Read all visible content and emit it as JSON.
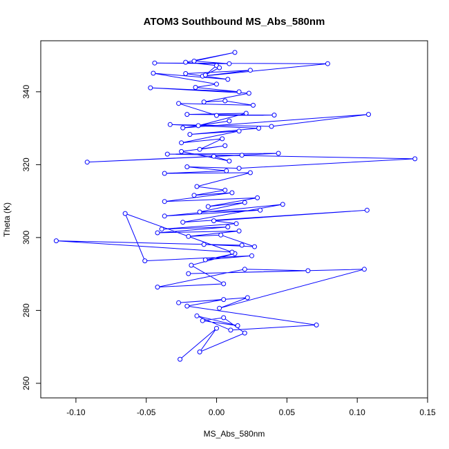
{
  "chart_data": {
    "type": "line",
    "title": "ATOM3 Southbound MS_Abs_580nm",
    "xlabel": "MS_Abs_580nm",
    "ylabel": "Theta (K)",
    "xlim": [
      -0.125,
      0.15
    ],
    "ylim": [
      256,
      354
    ],
    "x_ticks": [
      -0.1,
      -0.05,
      0.0,
      0.05,
      0.1,
      0.15
    ],
    "x_tick_labels": [
      "-0.10",
      "-0.05",
      "0.00",
      "0.05",
      "0.10",
      "0.15"
    ],
    "y_ticks": [
      260,
      280,
      300,
      320,
      340
    ],
    "y_tick_labels": [
      "260",
      "280",
      "300",
      "320",
      "340"
    ],
    "markers": "open-circle",
    "grid": false,
    "legend": "none",
    "series_color": "#0000ff",
    "series": [
      {
        "points": [
          [
            -0.026,
            266.6
          ],
          [
            0.0,
            275.1
          ],
          [
            -0.012,
            268.6
          ],
          [
            0.02,
            273.8
          ],
          [
            0.005,
            278.0
          ],
          [
            -0.01,
            277.2
          ],
          [
            0.015,
            275.8
          ],
          [
            -0.014,
            278.5
          ],
          [
            0.01,
            274.6
          ],
          [
            0.071,
            276.0
          ],
          [
            -0.021,
            281.2
          ],
          [
            0.005,
            283.0
          ],
          [
            -0.027,
            282.1
          ],
          [
            0.022,
            283.5
          ],
          [
            0.002,
            280.6
          ],
          [
            0.105,
            291.3
          ],
          [
            -0.02,
            290.1
          ],
          [
            0.065,
            290.9
          ],
          [
            0.02,
            291.3
          ],
          [
            -0.042,
            286.4
          ],
          [
            0.005,
            287.3
          ],
          [
            -0.018,
            292.4
          ],
          [
            0.013,
            295.6
          ],
          [
            -0.008,
            293.9
          ],
          [
            0.025,
            295.0
          ],
          [
            -0.051,
            293.6
          ],
          [
            -0.065,
            306.6
          ],
          [
            0.011,
            296.0
          ],
          [
            -0.114,
            299.1
          ],
          [
            0.018,
            297.9
          ],
          [
            -0.009,
            298.1
          ],
          [
            0.027,
            297.5
          ],
          [
            0.003,
            300.7
          ],
          [
            -0.02,
            300.3
          ],
          [
            0.016,
            301.8
          ],
          [
            -0.042,
            301.3
          ],
          [
            0.008,
            302.9
          ],
          [
            -0.039,
            302.3
          ],
          [
            0.014,
            303.8
          ],
          [
            -0.002,
            304.6
          ],
          [
            0.107,
            307.5
          ],
          [
            -0.024,
            304.2
          ],
          [
            0.047,
            309.1
          ],
          [
            -0.037,
            305.9
          ],
          [
            0.031,
            307.5
          ],
          [
            -0.012,
            307.0
          ],
          [
            0.02,
            309.6
          ],
          [
            -0.006,
            308.5
          ],
          [
            0.029,
            310.9
          ],
          [
            -0.037,
            309.9
          ],
          [
            0.011,
            312.3
          ],
          [
            -0.016,
            311.6
          ],
          [
            0.006,
            313.0
          ],
          [
            -0.014,
            314.0
          ],
          [
            0.024,
            317.8
          ],
          [
            -0.037,
            317.6
          ],
          [
            0.007,
            318.3
          ],
          [
            -0.021,
            319.4
          ],
          [
            0.016,
            319.0
          ],
          [
            0.141,
            321.6
          ],
          [
            -0.035,
            322.9
          ],
          [
            0.044,
            323.1
          ],
          [
            -0.092,
            320.7
          ],
          [
            0.018,
            322.6
          ],
          [
            -0.002,
            322.3
          ],
          [
            0.009,
            321.0
          ],
          [
            -0.025,
            323.6
          ],
          [
            0.006,
            325.2
          ],
          [
            -0.012,
            324.2
          ],
          [
            0.004,
            327.1
          ],
          [
            -0.025,
            326.0
          ],
          [
            0.016,
            329.2
          ],
          [
            -0.019,
            328.3
          ],
          [
            0.03,
            330.0
          ],
          [
            -0.033,
            331.0
          ],
          [
            0.039,
            330.5
          ],
          [
            0.108,
            333.8
          ],
          [
            -0.024,
            330.1
          ],
          [
            0.009,
            332.0
          ],
          [
            -0.013,
            330.7
          ],
          [
            0.021,
            334.1
          ],
          [
            -0.021,
            333.8
          ],
          [
            0.041,
            333.6
          ],
          [
            0.0,
            333.5
          ],
          [
            -0.027,
            336.8
          ],
          [
            0.026,
            336.3
          ],
          [
            0.006,
            337.5
          ],
          [
            -0.009,
            337.2
          ],
          [
            0.023,
            339.6
          ],
          [
            -0.047,
            341.1
          ],
          [
            0.016,
            340.0
          ],
          [
            -0.015,
            341.2
          ],
          [
            0.0,
            342.1
          ],
          [
            -0.045,
            345.1
          ],
          [
            0.008,
            343.4
          ],
          [
            -0.022,
            345.0
          ],
          [
            0.024,
            345.9
          ],
          [
            -0.01,
            344.3
          ],
          [
            0.079,
            347.7
          ],
          [
            -0.044,
            347.9
          ],
          [
            0.009,
            347.7
          ],
          [
            -0.016,
            348.4
          ],
          [
            0.013,
            350.8
          ],
          [
            -0.022,
            348.1
          ],
          [
            0.0,
            347.2
          ],
          [
            -0.008,
            344.6
          ],
          [
            0.002,
            346.6
          ]
        ]
      }
    ]
  }
}
